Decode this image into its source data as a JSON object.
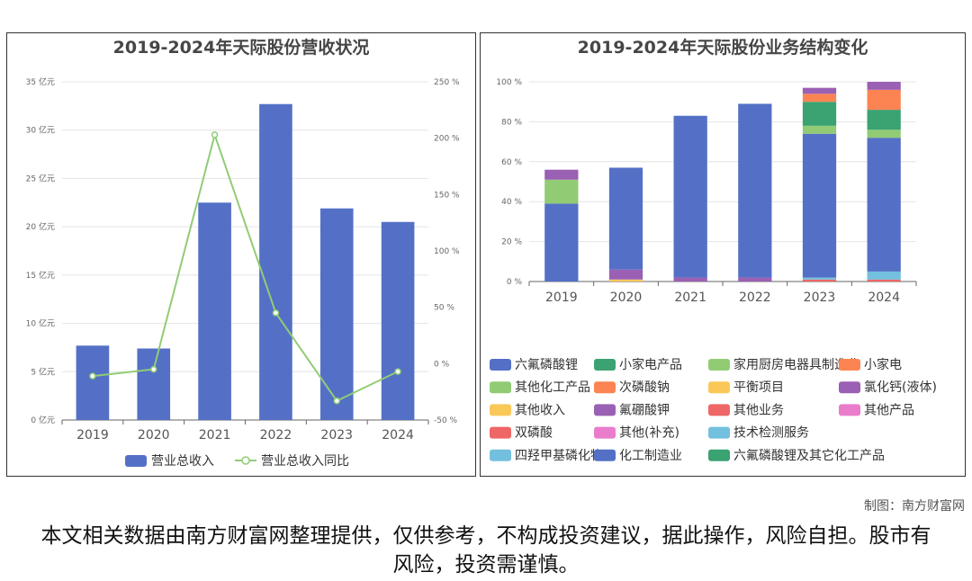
{
  "credit": "制图：南方财富网",
  "disclaimer": "本文相关数据由南方财富网整理提供，仅供参考，不构成投资建议，据此操作，风险自担。股市有风险，投资需谨慎。",
  "chart_data": [
    {
      "type": "bar",
      "title": "2019-2024年天际股份营收状况",
      "categories": [
        "2019",
        "2020",
        "2021",
        "2022",
        "2023",
        "2024"
      ],
      "y_ticks": [
        "0 亿元",
        "5 亿元",
        "10 亿元",
        "15 亿元",
        "20 亿元",
        "25 亿元",
        "30 亿元",
        "35 亿元"
      ],
      "y2_ticks": [
        "-50 %",
        "0 %",
        "50 %",
        "100 %",
        "150 %",
        "200 %",
        "250 %"
      ],
      "ylim": [
        0,
        35
      ],
      "y2lim": [
        -50,
        250
      ],
      "series": [
        {
          "name": "营业总收入",
          "kind": "bar",
          "color": "#5470c6",
          "values": [
            7.7,
            7.4,
            22.5,
            32.7,
            21.9,
            20.5
          ]
        },
        {
          "name": "营业总收入同比",
          "kind": "line",
          "color": "#91cc75",
          "values": [
            -11,
            -5,
            203,
            45,
            -33,
            -7
          ]
        }
      ]
    },
    {
      "type": "bar",
      "stacked": true,
      "title": "2019-2024年天际股份业务结构变化",
      "categories": [
        "2019",
        "2020",
        "2021",
        "2022",
        "2023",
        "2024"
      ],
      "y_ticks": [
        "0 %",
        "20 %",
        "40 %",
        "60 %",
        "80 %",
        "100 %"
      ],
      "ylim": [
        0,
        100
      ],
      "series": [
        {
          "name": "六氟磷酸锂",
          "color": "#5470c6",
          "values": [
            39,
            0,
            0,
            0,
            0,
            0
          ]
        },
        {
          "name": "其他化工产品",
          "color": "#91cc75",
          "values": [
            12,
            0,
            0,
            0,
            0,
            0
          ]
        },
        {
          "name": "其他收入",
          "color": "#fac858",
          "values": [
            0,
            1,
            0,
            0,
            0,
            0
          ]
        },
        {
          "name": "双磷酸",
          "color": "#ee6666",
          "values": [
            0,
            0,
            0,
            0,
            1,
            1
          ]
        },
        {
          "name": "四羟甲基磷化物",
          "color": "#73c0de",
          "values": [
            0,
            0,
            0,
            0,
            1,
            4
          ]
        },
        {
          "name": "小家电产品",
          "color": "#3ba272",
          "values": [
            0,
            0,
            0,
            0,
            0,
            0
          ]
        },
        {
          "name": "次磷酸钠",
          "color": "#fc8452",
          "values": [
            0,
            0,
            0,
            0,
            0,
            0
          ]
        },
        {
          "name": "氟硼酸钾",
          "color": "#9a60b4",
          "values": [
            5,
            5,
            2,
            2,
            0,
            0
          ]
        },
        {
          "name": "其他(补充)",
          "color": "#ea7ccc",
          "values": [
            0,
            0,
            0,
            0,
            0,
            0
          ]
        },
        {
          "name": "化工制造业",
          "color": "#5470c6",
          "values": [
            0,
            51,
            81,
            87,
            72,
            67
          ]
        },
        {
          "name": "家用厨房电器具制造业",
          "color": "#91cc75",
          "values": [
            0,
            0,
            0,
            0,
            4,
            4
          ]
        },
        {
          "name": "平衡项目",
          "color": "#fac858",
          "values": [
            0,
            0,
            0,
            0,
            0,
            0
          ]
        },
        {
          "name": "其他业务",
          "color": "#ee6666",
          "values": [
            0,
            0,
            0,
            0,
            0,
            0
          ]
        },
        {
          "name": "技术检测服务",
          "color": "#73c0de",
          "values": [
            0,
            0,
            0,
            0,
            0,
            0
          ]
        },
        {
          "name": "六氟磷酸锂及其它化工产品",
          "color": "#3ba272",
          "values": [
            0,
            0,
            0,
            0,
            12,
            10
          ]
        },
        {
          "name": "小家电",
          "color": "#fc8452",
          "values": [
            0,
            0,
            0,
            0,
            4,
            10
          ]
        },
        {
          "name": "氯化钙(液体)",
          "color": "#9a60b4",
          "values": [
            0,
            0,
            0,
            0,
            3,
            4
          ]
        },
        {
          "name": "其他产品",
          "color": "#ea7ccc",
          "values": [
            0,
            0,
            0,
            0,
            0,
            0
          ]
        }
      ],
      "legend_layout": "4 columns"
    }
  ]
}
